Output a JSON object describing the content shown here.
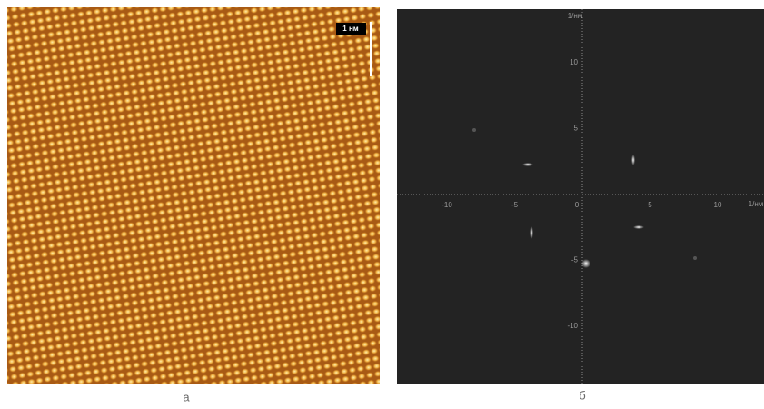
{
  "panels": {
    "a": {
      "scale_bar": "1 нм",
      "caption": "а"
    },
    "b": {
      "axis_unit": "1/нм",
      "xticks": [
        -10,
        -5,
        0,
        5,
        10
      ],
      "yticks": [
        10,
        5,
        0,
        -5,
        -10
      ],
      "caption": "б"
    }
  }
}
